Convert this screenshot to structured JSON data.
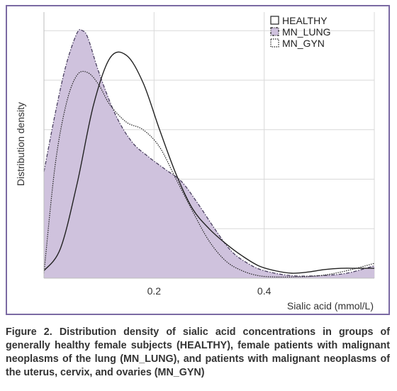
{
  "caption": "Figure 2. Distribution density of sialic acid concentrations in groups of generally healthy female subjects (HEALTHY), female patients with malignant neoplasms of the lung (MN_LUNG), and patients with malignant neoplasms of the uterus, cervix, and ovaries (MN_GYN)",
  "colors": {
    "frame": "#7b6aa3",
    "fill_lung": "#cfc2dd",
    "grid": "#d9d9d9",
    "line": "#222222"
  },
  "chart_data": {
    "type": "area",
    "xlabel": "Sialic acid (mmol/L)",
    "ylabel": "Distribution density",
    "xlim": [
      0,
      0.6
    ],
    "xticks": [
      "0.2",
      "0.4"
    ],
    "xtick_values": [
      0.2,
      0.4
    ],
    "ylim": [
      0,
      1
    ],
    "show_y_tick_labels": false,
    "grid": true,
    "legend_position": "top-right",
    "series": [
      {
        "name": "HEALTHY",
        "style": "solid line",
        "x": [
          0,
          0.03,
          0.06,
          0.09,
          0.12,
          0.15,
          0.18,
          0.21,
          0.24,
          0.27,
          0.3,
          0.33,
          0.36,
          0.39,
          0.42,
          0.45,
          0.48,
          0.51,
          0.54,
          0.57,
          0.6
        ],
        "y": [
          0.03,
          0.12,
          0.38,
          0.7,
          0.89,
          0.9,
          0.79,
          0.6,
          0.42,
          0.28,
          0.2,
          0.14,
          0.09,
          0.05,
          0.03,
          0.02,
          0.025,
          0.035,
          0.04,
          0.04,
          0.04
        ]
      },
      {
        "name": "MN_LUNG",
        "style": "filled area, dash-dot outline",
        "x": [
          0,
          0.02,
          0.04,
          0.06,
          0.07,
          0.08,
          0.1,
          0.13,
          0.16,
          0.19,
          0.22,
          0.25,
          0.28,
          0.31,
          0.34,
          0.37,
          0.4,
          0.45,
          0.5,
          0.55,
          0.6
        ],
        "y": [
          0.43,
          0.66,
          0.86,
          0.99,
          1.0,
          0.97,
          0.83,
          0.66,
          0.55,
          0.49,
          0.44,
          0.39,
          0.3,
          0.2,
          0.11,
          0.06,
          0.03,
          0.01,
          0.01,
          0.02,
          0.05
        ]
      },
      {
        "name": "MN_GYN",
        "style": "dotted line",
        "x": [
          0,
          0.02,
          0.04,
          0.06,
          0.08,
          0.1,
          0.12,
          0.15,
          0.18,
          0.21,
          0.24,
          0.27,
          0.3,
          0.33,
          0.36,
          0.39,
          0.42,
          0.45,
          0.5,
          0.55,
          0.6
        ],
        "y": [
          0.02,
          0.45,
          0.7,
          0.82,
          0.83,
          0.78,
          0.7,
          0.63,
          0.6,
          0.53,
          0.4,
          0.27,
          0.15,
          0.07,
          0.03,
          0.01,
          0.005,
          0.005,
          0.01,
          0.03,
          0.06
        ]
      }
    ]
  }
}
